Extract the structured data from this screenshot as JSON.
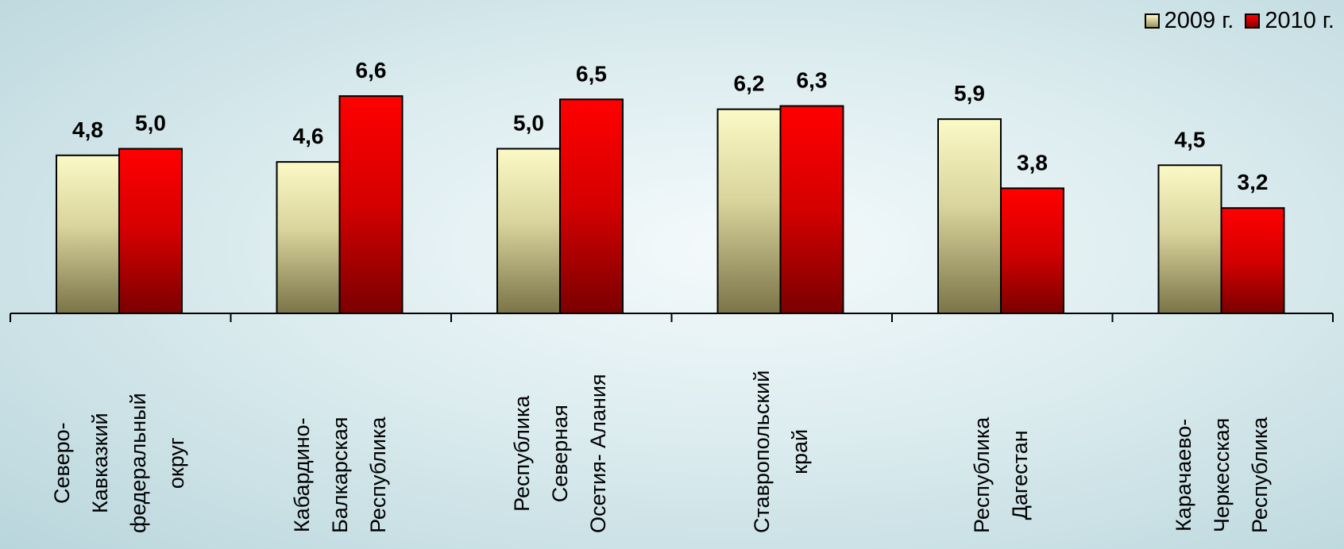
{
  "chart_data": {
    "type": "bar",
    "categories": [
      "Северо-\nКавказкий\nфедеральный\nокруг",
      "Кабардино-\nБалкарская\nРеспублика",
      "Республика\nСеверная\nОсетия- Алания",
      "Ставропольский\nкрай",
      "Республика\nДагестан",
      "Карачаево-\nЧеркесская\nРеспублика"
    ],
    "series": [
      {
        "name": "2009 г.",
        "values": [
          4.8,
          4.6,
          5.0,
          6.2,
          5.9,
          4.5
        ],
        "labels": [
          "4,8",
          "4,6",
          "5,0",
          "6,2",
          "5,9",
          "4,5"
        ],
        "color": "#f5f2b0"
      },
      {
        "name": "2010 г.",
        "values": [
          5.0,
          6.6,
          6.5,
          6.3,
          3.8,
          3.2
        ],
        "labels": [
          "5,0",
          "6,6",
          "6,5",
          "6,3",
          "3,8",
          "3,2"
        ],
        "color": "#e00000"
      }
    ],
    "ylim": [
      0,
      10
    ],
    "grid": false,
    "legend": "top-right"
  }
}
